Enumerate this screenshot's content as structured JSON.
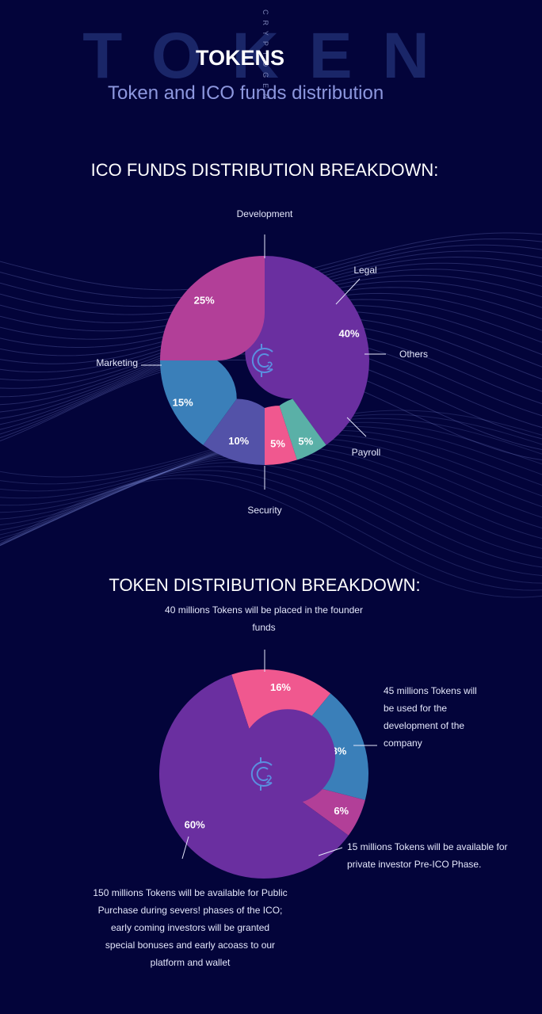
{
  "header": {
    "background_word": "TOKEN",
    "vertical_word": "CRYPTOGEN",
    "title": "TOKENS",
    "subtitle": "Token and ICO funds distribution"
  },
  "colors": {
    "background": "#03043a",
    "purple": "#6a2fa0",
    "teal": "#5ab0a7",
    "pink": "#f0588f",
    "indigo": "#5352a8",
    "blue": "#3a7fb9",
    "magenta": "#b23f98"
  },
  "chart_data": [
    {
      "type": "pie",
      "title": "ICO FUNDS DISTRIBUTION BREAKDOWN:",
      "center_icon": "cryptogen-coin-icon",
      "slices": [
        {
          "label": "Development",
          "value": 40,
          "value_label": "40%",
          "color": "#6a2fa0"
        },
        {
          "label": "Legal",
          "value": 5,
          "value_label": "5%",
          "color": "#5ab0a7"
        },
        {
          "label": "Others",
          "value": 5,
          "value_label": "5%",
          "color": "#f0588f"
        },
        {
          "label": "Payroll",
          "value": 10,
          "value_label": "10%",
          "color": "#5352a8"
        },
        {
          "label": "Security",
          "value": 15,
          "value_label": "15%",
          "color": "#3a7fb9"
        },
        {
          "label": "Marketing",
          "value": 25,
          "value_label": "25%",
          "color": "#b23f98"
        }
      ]
    },
    {
      "type": "pie",
      "title": "TOKEN DISTRIBUTION BREAKDOWN:",
      "center_icon": "cryptogen-coin-icon",
      "slices": [
        {
          "label": "40 millions Tokens will be placed in the founder funds",
          "value": 16,
          "value_label": "16%",
          "color": "#f0588f"
        },
        {
          "label": "45 millions Tokens will be used for the development of the company",
          "value": 18,
          "value_label": "18%",
          "color": "#3a7fb9"
        },
        {
          "label": "15 millions Tokens will be available for private investor Pre-ICO Phase.",
          "value": 6,
          "value_label": "6%",
          "color": "#b23f98"
        },
        {
          "label": "150 millions Tokens will be available for Public Purchase during severs! phases of the ICO; early coming investors will be granted special bonuses and early acoass to our platform and wallet",
          "value": 60,
          "value_label": "60%",
          "color": "#6a2fa0"
        }
      ]
    }
  ],
  "notes": {
    "founder_line1": "40 millions Tokens will be placed in the founder",
    "founder_line2": "funds",
    "dev_line1": "45 millions Tokens will",
    "dev_line2": "be used for the",
    "dev_line3": "development of the",
    "dev_line4": "company",
    "pre_line1": "15 millions Tokens will be available for",
    "pre_line2": "private investor Pre-ICO Phase.",
    "public_line1": "150 millions Tokens will be available for Public",
    "public_line2": "Purchase during severs! phases of the ICO;",
    "public_line3": "early coming investors will be granted",
    "public_line4": "special bonuses and early acoass to our",
    "public_line5": "platform and wallet"
  }
}
